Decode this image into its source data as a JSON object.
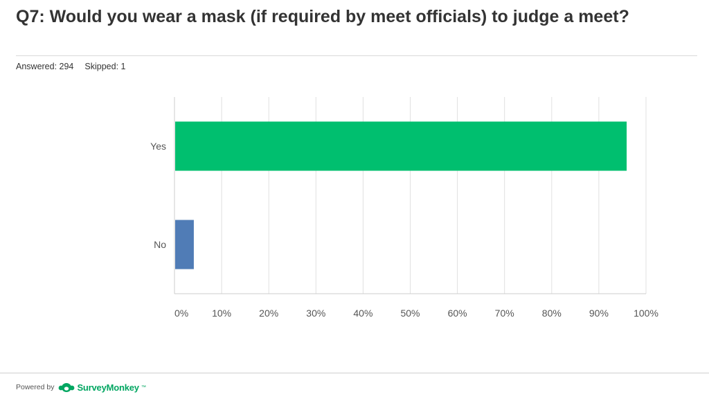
{
  "header": {
    "title": "Q7: Would you wear a mask (if required by meet officials) to judge a meet?",
    "answered": "Answered: 294",
    "skipped": "Skipped: 1"
  },
  "chart_data": {
    "type": "bar",
    "orientation": "horizontal",
    "categories": [
      "Yes",
      "No"
    ],
    "values": [
      95.9,
      4.1
    ],
    "colors": [
      "#00bf6f",
      "#507cb6"
    ],
    "xlim": [
      0,
      100
    ],
    "xticks": [
      "0%",
      "10%",
      "20%",
      "30%",
      "40%",
      "50%",
      "60%",
      "70%",
      "80%",
      "90%",
      "100%"
    ],
    "grid": true
  },
  "footer": {
    "powered_by": "Powered by",
    "brand": "SurveyMonkey",
    "brand_color": "#00a661"
  }
}
